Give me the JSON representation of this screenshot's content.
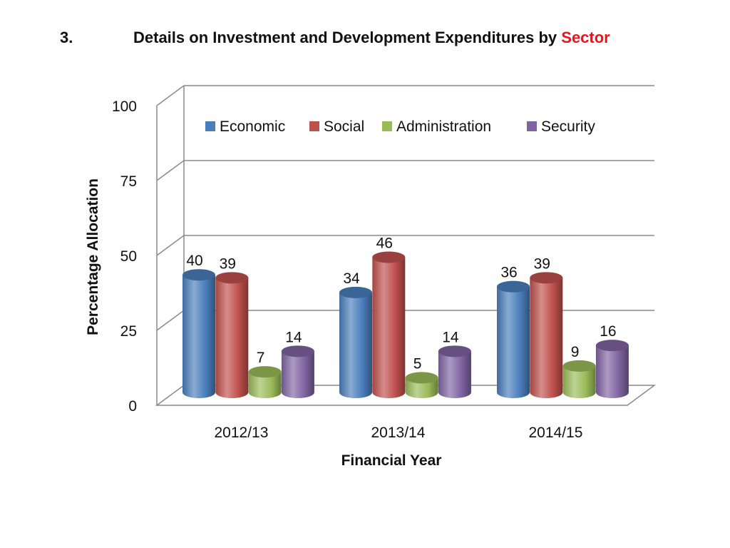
{
  "slide": {
    "number": "3.",
    "title_main": "Details on Investment and Development Expenditures by ",
    "title_highlight": "Sector",
    "highlight_color": "#e8141c"
  },
  "chart_data": {
    "type": "bar",
    "categories": [
      "2012/13",
      "2013/14",
      "2014/15"
    ],
    "series": [
      {
        "name": "Economic",
        "color": "#4a7ebb",
        "values": [
          40,
          34,
          36
        ]
      },
      {
        "name": "Social",
        "color": "#c0504d",
        "values": [
          39,
          46,
          39
        ]
      },
      {
        "name": "Administration",
        "color": "#9bbb59",
        "values": [
          7,
          5,
          9
        ]
      },
      {
        "name": "Security",
        "color": "#8064a2",
        "values": [
          14,
          14,
          16
        ]
      }
    ],
    "xlabel": "Financial Year",
    "ylabel": "Percentage Allocation",
    "ylim": [
      0,
      100
    ],
    "yticks": [
      0,
      25,
      50,
      75,
      100
    ],
    "grid": true,
    "legend": "top",
    "style": "3d-cylinder"
  }
}
